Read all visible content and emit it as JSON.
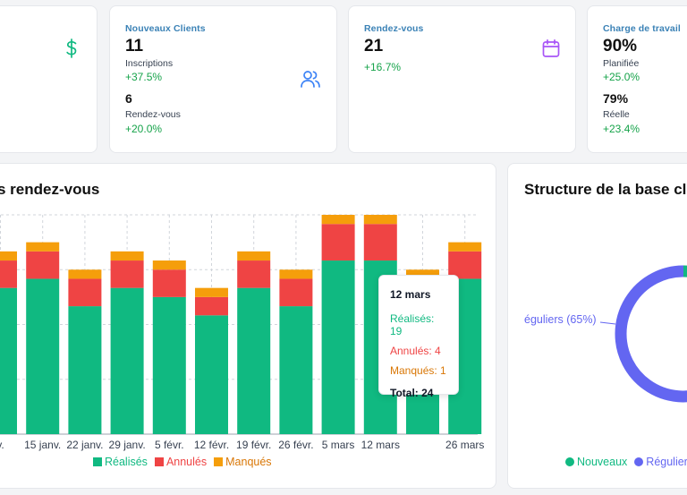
{
  "cards": {
    "revenue": {
      "icon": "dollar-icon"
    },
    "clients": {
      "title": "Nouveaux Clients",
      "value1": "11",
      "label1": "Inscriptions",
      "pct1": "+37.5%",
      "value2": "6",
      "label2": "Rendez-vous",
      "pct2": "+20.0%",
      "icon": "users-icon"
    },
    "appointments": {
      "title": "Rendez-vous",
      "value": "21",
      "pct": "+16.7%",
      "icon": "calendar-icon"
    },
    "workload": {
      "title": "Charge de travail",
      "value1": "90%",
      "label1": "Planifiée",
      "pct1": "+25.0%",
      "value2": "79%",
      "label2": "Réelle",
      "pct2": "+23.4%"
    }
  },
  "bar_section": {
    "title": "s rendez-vous"
  },
  "pie_section": {
    "title": "Structure de la base cli"
  },
  "tooltip": {
    "date": "12 mars",
    "realises": "Réalisés: 19",
    "annules": "Annulés: 4",
    "manques": "Manqués: 1",
    "total": "Total: 24"
  },
  "bar_legend": {
    "realises": "Réalisés",
    "annules": "Annulés",
    "manques": "Manqués"
  },
  "pie_legend": {
    "nouveaux": "Nouveaux",
    "reguliers": "Réguliers"
  },
  "pie_label": "éguliers (65%)",
  "colors": {
    "realises": "#10b981",
    "annules": "#ef4444",
    "manques": "#f59e0b",
    "nouveaux": "#10b981",
    "reguliers": "#6366f1"
  },
  "chart_data": [
    {
      "type": "bar",
      "stacked": true,
      "categories": [
        "v.",
        "15 janv.",
        "22 janv.",
        "29 janv.",
        "5 févr.",
        "12 févr.",
        "19 févr.",
        "26 févr.",
        "5 mars",
        "12 mars",
        "",
        "26 mars"
      ],
      "series": [
        {
          "name": "Réalisés",
          "values": [
            16,
            17,
            14,
            16,
            15,
            13,
            16,
            14,
            19,
            19,
            17,
            17
          ]
        },
        {
          "name": "Annulés",
          "values": [
            3,
            3,
            3,
            3,
            3,
            2,
            3,
            3,
            4,
            4,
            0,
            3
          ]
        },
        {
          "name": "Manqués",
          "values": [
            1,
            1,
            1,
            1,
            1,
            1,
            1,
            1,
            1,
            1,
            1,
            1
          ]
        }
      ],
      "ylim": [
        0,
        24
      ]
    },
    {
      "type": "pie",
      "categories": [
        "Nouveaux",
        "Réguliers"
      ],
      "values": [
        35,
        65
      ]
    }
  ]
}
